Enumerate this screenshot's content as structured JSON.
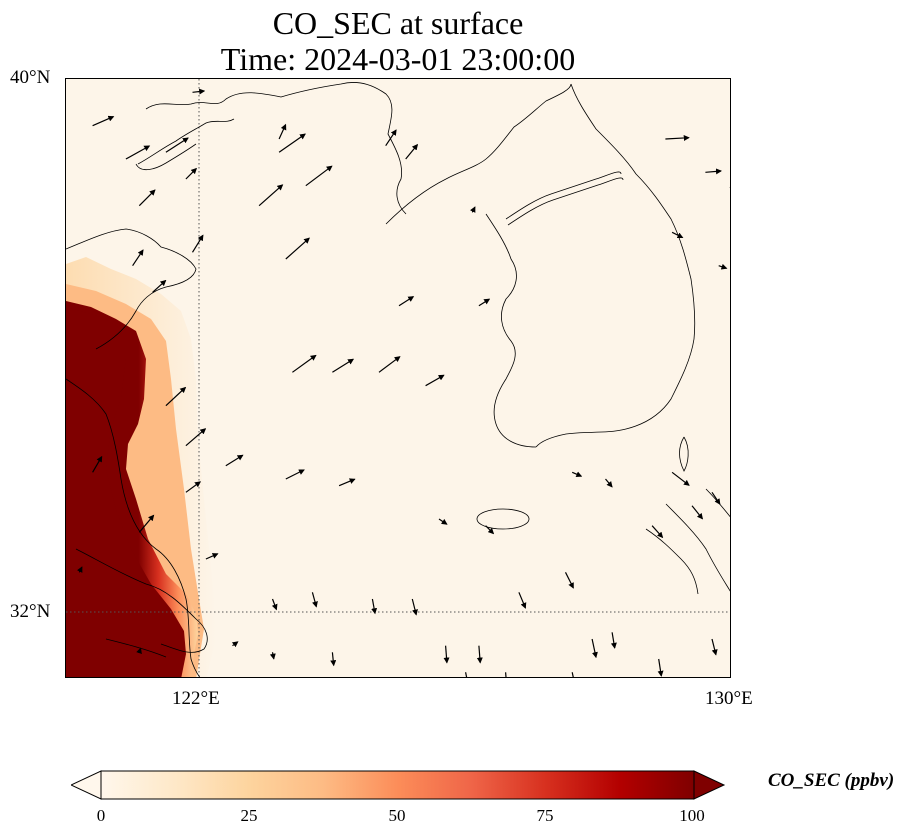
{
  "title": {
    "line1": "CO_SEC at surface",
    "line2": "Time: 2024-03-01 23:00:00"
  },
  "axes": {
    "lon_ticks": [
      {
        "value": 122,
        "label": "122°E"
      },
      {
        "value": 130,
        "label": "130°E"
      }
    ],
    "lat_ticks": [
      {
        "value": 40,
        "label": "40°N"
      },
      {
        "value": 32,
        "label": "32°N"
      }
    ],
    "lon_range": [
      120,
      130
    ],
    "lat_range": [
      31,
      40
    ],
    "gridlines": "dotted at 122°E and 32°N"
  },
  "colorbar": {
    "label": "CO_SEC (ppbv)",
    "colormap": "OrRd",
    "extend": "both",
    "range": [
      0,
      100
    ],
    "ticks": [
      {
        "value": 0,
        "label": "0"
      },
      {
        "value": 25,
        "label": "25"
      },
      {
        "value": 50,
        "label": "50"
      },
      {
        "value": 75,
        "label": "75"
      },
      {
        "value": 100,
        "label": "100"
      }
    ],
    "colors": [
      "#fff7ec",
      "#fee8c8",
      "#fdd49e",
      "#fdbb84",
      "#fc8d59",
      "#ef6548",
      "#d7301f",
      "#b30000",
      "#7f0000"
    ]
  },
  "field_description": "high CO_SEC (>100 ppbv) along the western edge (Chinese coast 120–122°E, 31–35°N), near zero elsewhere",
  "wind_vectors": [
    {
      "lon": 120.4,
      "lat": 39.3,
      "u": 1.6,
      "v": 0.7
    },
    {
      "lon": 120.9,
      "lat": 38.8,
      "u": 1.8,
      "v": 1.0
    },
    {
      "lon": 121.5,
      "lat": 38.9,
      "u": 1.7,
      "v": 1.1
    },
    {
      "lon": 121.1,
      "lat": 38.1,
      "u": 1.2,
      "v": 1.2
    },
    {
      "lon": 121.8,
      "lat": 38.5,
      "u": 0.8,
      "v": 0.8
    },
    {
      "lon": 121.9,
      "lat": 39.8,
      "u": 0.9,
      "v": 0.1
    },
    {
      "lon": 123.2,
      "lat": 38.9,
      "u": 2.0,
      "v": 1.4
    },
    {
      "lon": 123.2,
      "lat": 39.1,
      "u": 0.5,
      "v": 1.1
    },
    {
      "lon": 123.6,
      "lat": 38.4,
      "u": 2.0,
      "v": 1.5
    },
    {
      "lon": 122.9,
      "lat": 38.1,
      "u": 1.8,
      "v": 1.6
    },
    {
      "lon": 124.8,
      "lat": 39.0,
      "u": 0.8,
      "v": 1.2
    },
    {
      "lon": 125.1,
      "lat": 38.8,
      "u": 0.9,
      "v": 1.1
    },
    {
      "lon": 123.3,
      "lat": 37.3,
      "u": 1.8,
      "v": 1.6
    },
    {
      "lon": 121.0,
      "lat": 37.2,
      "u": 0.8,
      "v": 1.2
    },
    {
      "lon": 121.3,
      "lat": 36.8,
      "u": 1.0,
      "v": 0.9
    },
    {
      "lon": 121.9,
      "lat": 37.4,
      "u": 0.8,
      "v": 1.3
    },
    {
      "lon": 125.0,
      "lat": 36.6,
      "u": 1.1,
      "v": 0.7
    },
    {
      "lon": 126.2,
      "lat": 36.6,
      "u": 0.8,
      "v": 0.5
    },
    {
      "lon": 129.0,
      "lat": 39.1,
      "u": 1.8,
      "v": 0.1
    },
    {
      "lon": 129.6,
      "lat": 38.6,
      "u": 1.2,
      "v": 0.1
    },
    {
      "lon": 130.0,
      "lat": 39.1,
      "u": 2.0,
      "v": -0.7
    },
    {
      "lon": 126.1,
      "lat": 38.0,
      "u": 0.2,
      "v": 0.4
    },
    {
      "lon": 129.1,
      "lat": 37.7,
      "u": 0.8,
      "v": -0.4
    },
    {
      "lon": 129.8,
      "lat": 37.2,
      "u": 0.6,
      "v": -0.2
    },
    {
      "lon": 130.0,
      "lat": 38.4,
      "u": 0.2,
      "v": -0.3
    },
    {
      "lon": 123.4,
      "lat": 35.6,
      "u": 1.8,
      "v": 1.3
    },
    {
      "lon": 124.0,
      "lat": 35.6,
      "u": 1.6,
      "v": 1.0
    },
    {
      "lon": 124.7,
      "lat": 35.6,
      "u": 1.6,
      "v": 1.2
    },
    {
      "lon": 125.4,
      "lat": 35.4,
      "u": 1.4,
      "v": 0.8
    },
    {
      "lon": 121.5,
      "lat": 35.1,
      "u": 1.5,
      "v": 1.4
    },
    {
      "lon": 121.8,
      "lat": 34.5,
      "u": 1.5,
      "v": 1.3
    },
    {
      "lon": 122.4,
      "lat": 34.2,
      "u": 1.3,
      "v": 0.8
    },
    {
      "lon": 123.3,
      "lat": 34.0,
      "u": 1.4,
      "v": 0.7
    },
    {
      "lon": 124.1,
      "lat": 33.9,
      "u": 1.2,
      "v": 0.5
    },
    {
      "lon": 121.8,
      "lat": 33.8,
      "u": 1.1,
      "v": 0.8
    },
    {
      "lon": 121.1,
      "lat": 33.2,
      "u": 1.1,
      "v": 1.3
    },
    {
      "lon": 120.4,
      "lat": 34.1,
      "u": 0.7,
      "v": 1.2
    },
    {
      "lon": 122.1,
      "lat": 32.8,
      "u": 0.9,
      "v": 0.4
    },
    {
      "lon": 125.6,
      "lat": 33.4,
      "u": 0.6,
      "v": -0.4
    },
    {
      "lon": 126.3,
      "lat": 33.3,
      "u": 0.6,
      "v": -0.6
    },
    {
      "lon": 127.6,
      "lat": 34.1,
      "u": 0.7,
      "v": -0.3
    },
    {
      "lon": 128.1,
      "lat": 34.0,
      "u": 0.5,
      "v": -0.6
    },
    {
      "lon": 129.1,
      "lat": 34.1,
      "u": 1.3,
      "v": -1.0
    },
    {
      "lon": 129.4,
      "lat": 33.6,
      "u": 0.8,
      "v": -1.0
    },
    {
      "lon": 129.7,
      "lat": 33.8,
      "u": 0.6,
      "v": -0.9
    },
    {
      "lon": 128.8,
      "lat": 33.3,
      "u": 0.8,
      "v": -0.9
    },
    {
      "lon": 127.5,
      "lat": 32.6,
      "u": 0.6,
      "v": -1.2
    },
    {
      "lon": 126.8,
      "lat": 32.3,
      "u": 0.5,
      "v": -1.2
    },
    {
      "lon": 125.2,
      "lat": 32.2,
      "u": 0.3,
      "v": -1.2
    },
    {
      "lon": 124.6,
      "lat": 32.2,
      "u": 0.2,
      "v": -1.1
    },
    {
      "lon": 123.7,
      "lat": 32.3,
      "u": 0.3,
      "v": -1.1
    },
    {
      "lon": 123.1,
      "lat": 32.2,
      "u": 0.3,
      "v": -0.8
    },
    {
      "lon": 122.5,
      "lat": 31.5,
      "u": 0.4,
      "v": 0.3
    },
    {
      "lon": 123.1,
      "lat": 31.4,
      "u": 0.1,
      "v": -0.5
    },
    {
      "lon": 124.0,
      "lat": 31.4,
      "u": 0.1,
      "v": -1.0
    },
    {
      "lon": 125.7,
      "lat": 31.5,
      "u": 0.1,
      "v": -1.3
    },
    {
      "lon": 126.2,
      "lat": 31.5,
      "u": 0.1,
      "v": -1.3
    },
    {
      "lon": 126.6,
      "lat": 31.1,
      "u": 0.1,
      "v": -1.2
    },
    {
      "lon": 127.6,
      "lat": 31.1,
      "u": 0.3,
      "v": -1.4
    },
    {
      "lon": 127.9,
      "lat": 31.6,
      "u": 0.3,
      "v": -1.4
    },
    {
      "lon": 128.2,
      "lat": 31.7,
      "u": 0.2,
      "v": -1.2
    },
    {
      "lon": 128.9,
      "lat": 31.3,
      "u": 0.2,
      "v": -1.3
    },
    {
      "lon": 129.7,
      "lat": 31.6,
      "u": 0.3,
      "v": -1.2
    },
    {
      "lon": 126.0,
      "lat": 31.1,
      "u": 0.2,
      "v": -1.0
    },
    {
      "lon": 121.1,
      "lat": 31.4,
      "u": 0.1,
      "v": 0.3
    },
    {
      "lon": 120.2,
      "lat": 32.6,
      "u": 0.2,
      "v": 0.4
    },
    {
      "lon": 127.2,
      "lat": 31.0,
      "u": 0.2,
      "v": -1.3
    }
  ]
}
